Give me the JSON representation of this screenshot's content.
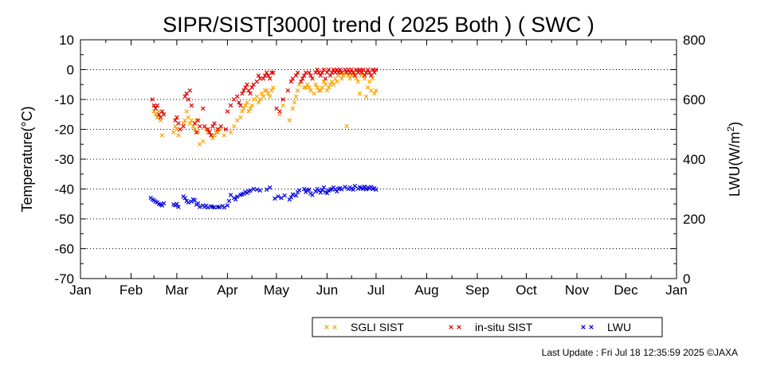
{
  "chart_data": {
    "type": "scatter",
    "title": "SIPR/SIST[3000] trend ( 2025 Both ) ( SWC )",
    "ylabel": "Temperature(°C)",
    "y2label_base": "LWU(W/m",
    "y2label_sup": "2",
    "y2label_end": ")",
    "ylim": [
      -70,
      10
    ],
    "yticks": [
      "10",
      "0",
      "-10",
      "-20",
      "-30",
      "-40",
      "-50",
      "-60",
      "-70"
    ],
    "y2lim": [
      0,
      800
    ],
    "y2ticks": [
      "800",
      "600",
      "400",
      "200",
      "0"
    ],
    "xlim": [
      0,
      365
    ],
    "xticks": [
      "Jan",
      "Feb",
      "Mar",
      "Apr",
      "May",
      "Jun",
      "Jul",
      "Aug",
      "Sep",
      "Oct",
      "Nov",
      "Dec",
      "Jan"
    ],
    "xtick_days": [
      0,
      31,
      59,
      90,
      120,
      151,
      181,
      212,
      243,
      273,
      304,
      334,
      365
    ],
    "grid": true,
    "legend_position": "bottom",
    "series": [
      {
        "name": "SGLI SIST",
        "color": "#ffa500",
        "axis": "left",
        "x": [
          45,
          46,
          47,
          48,
          49,
          50,
          51,
          57,
          58,
          59,
          60,
          63,
          64,
          65,
          66,
          67,
          68,
          69,
          70,
          71,
          72,
          73,
          75,
          77,
          78,
          81,
          82,
          83,
          84,
          85,
          88,
          92,
          94,
          96,
          98,
          99,
          100,
          101,
          102,
          103,
          104,
          105,
          106,
          108,
          109,
          110,
          111,
          112,
          113,
          114,
          115,
          116,
          117,
          118,
          122,
          124,
          128,
          130,
          131,
          132,
          133,
          134,
          137,
          138,
          139,
          140,
          141,
          143,
          144,
          145,
          146,
          147,
          148,
          149,
          150,
          151,
          152,
          153,
          154,
          155,
          156,
          157,
          158,
          159,
          160,
          161,
          162,
          163,
          164,
          165,
          166,
          168,
          169,
          170,
          171,
          172,
          173,
          174,
          175,
          176,
          177,
          178,
          179,
          180,
          181
        ],
        "y": [
          -14,
          -15,
          -16,
          -14,
          -17,
          -22,
          -15,
          -21,
          -19,
          -20,
          -22,
          -18,
          -17,
          -14,
          -16,
          -18,
          -17,
          -19,
          -20,
          -17,
          -21,
          -25,
          -24,
          -20,
          -21,
          -23,
          -22,
          -21,
          -21,
          -20,
          -22,
          -21,
          -19,
          -17,
          -16,
          -14,
          -13,
          -12,
          -11,
          -14,
          -13,
          -12,
          -10,
          -9,
          -11,
          -10,
          -8,
          -9,
          -7,
          -7,
          -8,
          -9,
          -7,
          -6,
          -15,
          -12,
          -17,
          -13,
          -11,
          -9,
          -7,
          -5,
          -6,
          -6,
          -5,
          -6,
          -7,
          -8,
          -5,
          -6,
          -7,
          -7,
          -6,
          -4,
          -5,
          -7,
          -6,
          -5,
          -4,
          -5,
          -3,
          -4,
          -2,
          -1,
          -3,
          -2,
          -1,
          -19,
          -2,
          -3,
          -2,
          -1,
          -3,
          -4,
          -8,
          -2,
          -1,
          -3,
          -9,
          -6,
          -4,
          -7,
          -3,
          -8,
          -7
        ]
      },
      {
        "name": "in-situ SIST",
        "color": "#e60000",
        "axis": "left",
        "x": [
          44,
          45,
          46,
          47,
          48,
          49,
          50,
          51,
          58,
          59,
          60,
          61,
          63,
          64,
          65,
          66,
          67,
          68,
          70,
          71,
          72,
          73,
          75,
          76,
          78,
          79,
          80,
          81,
          82,
          84,
          86,
          89,
          90,
          92,
          94,
          96,
          97,
          98,
          99,
          100,
          101,
          102,
          103,
          104,
          105,
          106,
          108,
          109,
          110,
          112,
          113,
          114,
          115,
          116,
          117,
          118,
          120,
          122,
          124,
          127,
          129,
          130,
          132,
          133,
          135,
          136,
          137,
          138,
          140,
          141,
          142,
          144,
          145,
          146,
          147,
          148,
          149,
          150,
          151,
          152,
          153,
          154,
          155,
          156,
          157,
          158,
          159,
          160,
          162,
          163,
          164,
          165,
          166,
          167,
          168,
          169,
          170,
          171,
          172,
          173,
          174,
          175,
          176,
          177,
          178,
          179,
          180,
          181
        ],
        "y": [
          -10,
          -12,
          -13,
          -12,
          -15,
          -16,
          -14,
          -15,
          -17,
          -16,
          -18,
          -20,
          -19,
          -9,
          -8,
          -10,
          -7,
          -12,
          -18,
          -21,
          -17,
          -19,
          -13,
          -19,
          -20,
          -21,
          -22,
          -19,
          -18,
          -20,
          -19,
          -20,
          -14,
          -12,
          -10,
          -9,
          -11,
          -12,
          -8,
          -7,
          -6,
          -5,
          -7,
          -8,
          -6,
          -5,
          -4,
          -2,
          -3,
          -3,
          -2,
          -1,
          -2,
          -3,
          -1,
          -1,
          -13,
          -14,
          -10,
          -7,
          -4,
          -3,
          -2,
          -1,
          -4,
          -3,
          -2,
          -1,
          -1,
          -2,
          -3,
          -1,
          0,
          -1,
          -2,
          -1,
          0,
          -3,
          -1,
          0,
          -2,
          -1,
          0,
          -1,
          0,
          -1,
          0,
          -1,
          0,
          -1,
          0,
          -1,
          0,
          -1,
          -2,
          0,
          -1,
          0,
          -1,
          0,
          -2,
          -1,
          0,
          -1,
          -2,
          0,
          -1,
          0
        ]
      },
      {
        "name": "LWU",
        "color": "#0000dd",
        "axis": "right",
        "x": [
          43,
          44,
          45,
          46,
          47,
          48,
          49,
          50,
          51,
          57,
          58,
          59,
          60,
          63,
          64,
          65,
          66,
          68,
          69,
          70,
          71,
          72,
          73,
          75,
          76,
          77,
          78,
          80,
          81,
          82,
          84,
          85,
          87,
          88,
          90,
          91,
          92,
          94,
          95,
          96,
          98,
          99,
          100,
          101,
          102,
          103,
          104,
          106,
          108,
          110,
          114,
          116,
          119,
          121,
          123,
          125,
          128,
          129,
          130,
          132,
          133,
          134,
          137,
          138,
          139,
          140,
          141,
          142,
          144,
          145,
          146,
          147,
          148,
          149,
          150,
          151,
          152,
          153,
          154,
          155,
          156,
          157,
          158,
          159,
          160,
          162,
          164,
          165,
          166,
          167,
          168,
          170,
          171,
          172,
          173,
          174,
          175,
          176,
          177,
          178,
          179,
          180,
          181
        ],
        "y": [
          270,
          265,
          262,
          258,
          255,
          250,
          248,
          245,
          252,
          248,
          245,
          250,
          240,
          275,
          270,
          260,
          255,
          258,
          265,
          262,
          248,
          252,
          240,
          245,
          240,
          244,
          238,
          242,
          240,
          238,
          240,
          239,
          243,
          238,
          245,
          260,
          280,
          270,
          265,
          275,
          280,
          282,
          285,
          290,
          287,
          292,
          295,
          300,
          298,
          295,
          298,
          305,
          268,
          275,
          270,
          278,
          265,
          272,
          282,
          278,
          290,
          296,
          300,
          290,
          295,
          298,
          285,
          280,
          292,
          300,
          295,
          288,
          297,
          305,
          290,
          286,
          295,
          298,
          300,
          305,
          298,
          292,
          301,
          303,
          299,
          307,
          300,
          305,
          301,
          298,
          310,
          301,
          306,
          304,
          300,
          308,
          299,
          305,
          302,
          307,
          300,
          303,
          298
        ]
      }
    ]
  },
  "footer": "Last Update : Fri Jul 18 12:35:59 2025  ©JAXA"
}
